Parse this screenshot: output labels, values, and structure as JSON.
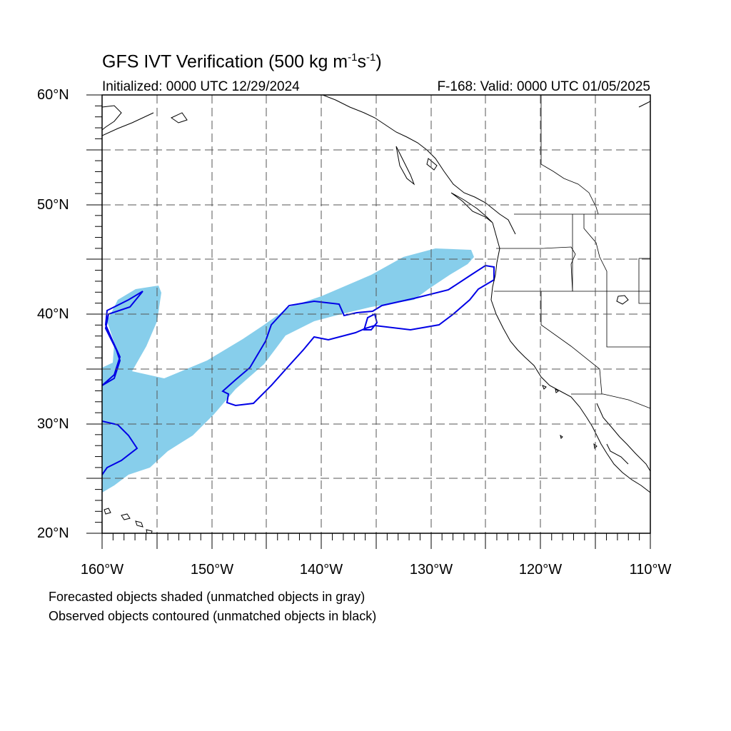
{
  "title": {
    "main": "GFS IVT Verification (500 kg m",
    "exp1": "-1",
    "mid": "s",
    "exp2": "-1",
    "close": ")"
  },
  "initialized": "Initialized: 0000 UTC 12/29/2024",
  "valid": "F-168: Valid: 0000 UTC 01/05/2025",
  "lat_labels": [
    "60°N",
    "50°N",
    "40°N",
    "30°N",
    "20°N"
  ],
  "lon_labels": [
    "160°W",
    "150°W",
    "140°W",
    "130°W",
    "120°W",
    "110°W"
  ],
  "notes": [
    "Forecasted objects shaded (unmatched objects in gray)",
    "Observed objects contoured (unmatched objects in black)"
  ],
  "colors": {
    "forecast_fill": "#87ceeb",
    "observed_contour": "#0000e6",
    "coastline": "#000000",
    "grid": "#555555"
  },
  "map_extent": {
    "lon": [
      -160,
      -110
    ],
    "lat": [
      20,
      60
    ]
  }
}
